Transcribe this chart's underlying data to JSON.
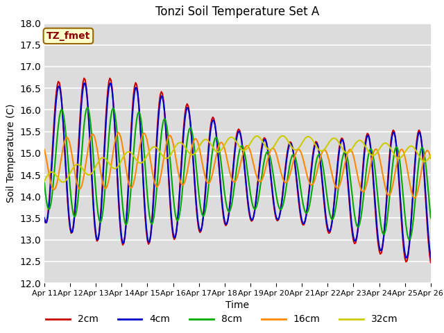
{
  "title": "Tonzi Soil Temperature Set A",
  "xlabel": "Time",
  "ylabel": "Soil Temperature (C)",
  "ylim": [
    12.0,
    18.0
  ],
  "yticks": [
    12.0,
    12.5,
    13.0,
    13.5,
    14.0,
    14.5,
    15.0,
    15.5,
    16.0,
    16.5,
    17.0,
    17.5,
    18.0
  ],
  "bg_color": "#dcdcdc",
  "fig_bg_color": "#ffffff",
  "annotation_text": "TZ_fmet",
  "annotation_bg": "#ffffcc",
  "annotation_border": "#996600",
  "annotation_text_color": "#880000",
  "series_names": [
    "2cm",
    "4cm",
    "8cm",
    "16cm",
    "32cm"
  ],
  "series_colors": [
    "#cc0000",
    "#0000cc",
    "#00aa00",
    "#ff8800",
    "#cccc00"
  ],
  "series_lw": [
    1.5,
    1.5,
    1.5,
    1.5,
    1.5
  ],
  "x_labels": [
    "Apr 11",
    "Apr 12",
    "Apr 13",
    "Apr 14",
    "Apr 15",
    "Apr 16",
    "Apr 17",
    "Apr 18",
    "Apr 19",
    "Apr 20",
    "Apr 21",
    "Apr 22",
    "Apr 23",
    "Apr 24",
    "Apr 25",
    "Apr 26"
  ],
  "num_points": 361,
  "legend_labels": [
    "2cm",
    "4cm",
    "8cm",
    "16cm",
    "32cm"
  ]
}
